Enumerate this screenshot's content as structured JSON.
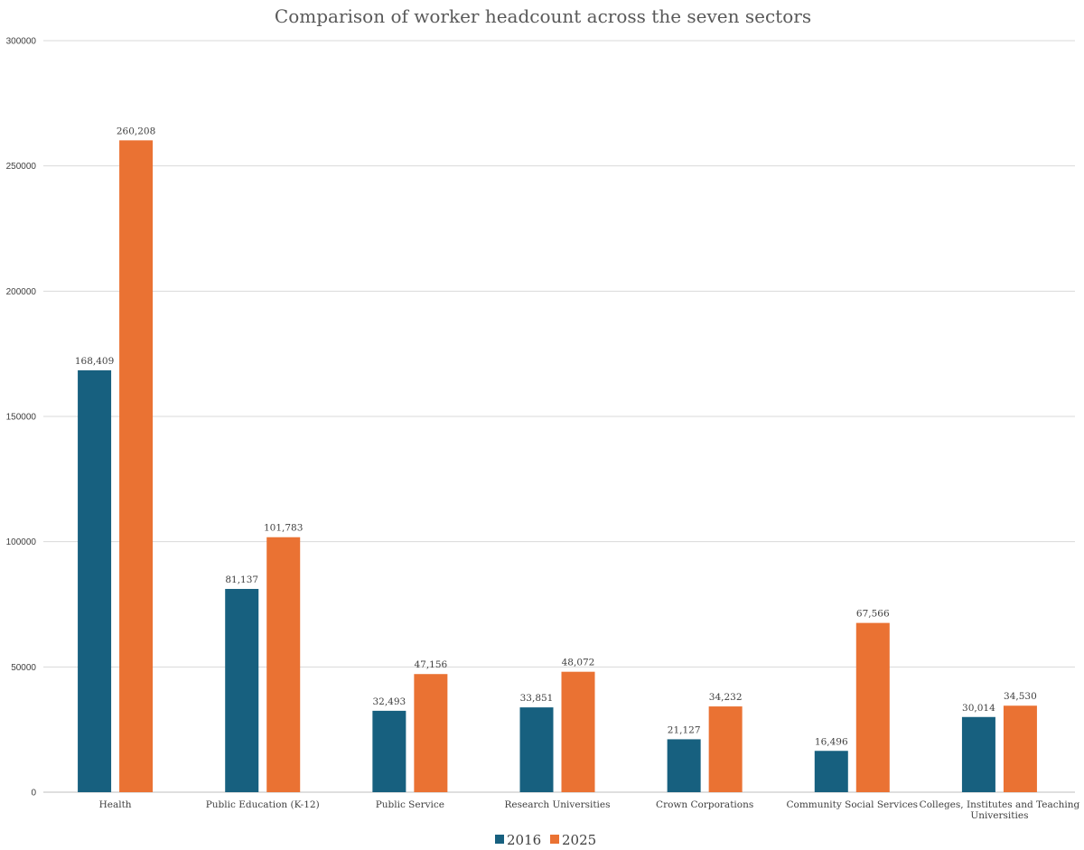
{
  "chart_data": {
    "type": "bar",
    "title": "Comparison of worker headcount across the seven sectors",
    "xlabel": "",
    "ylabel": "",
    "categories": [
      [
        "Health"
      ],
      [
        "Public Education (K-12)"
      ],
      [
        "Public Service"
      ],
      [
        "Research Universities"
      ],
      [
        "Crown Corporations"
      ],
      [
        "Community Social Services"
      ],
      [
        "Colleges, Institutes and Teaching",
        "Universities"
      ]
    ],
    "series": [
      {
        "name": "2016",
        "color": "#17607f",
        "values": [
          168409,
          81137,
          32493,
          33851,
          21127,
          16496,
          30014
        ],
        "labels": [
          "168,409",
          "81,137",
          "32,493",
          "33,851",
          "21,127",
          "16,496",
          "30,014"
        ]
      },
      {
        "name": "2025",
        "color": "#ea7233",
        "values": [
          260208,
          101783,
          47156,
          48072,
          34232,
          67566,
          34530
        ],
        "labels": [
          "260,208",
          "101,783",
          "47,156",
          "48,072",
          "34,232",
          "67,566",
          "34,530"
        ]
      }
    ],
    "ylim": [
      0,
      300000
    ],
    "yticks": [
      0,
      50000,
      100000,
      150000,
      200000,
      250000,
      300000
    ],
    "ytick_labels": [
      "0",
      "50000",
      "100000",
      "150000",
      "200000",
      "250000",
      "300000"
    ],
    "grid": true,
    "legend_position": "bottom-center",
    "gridline_color": "#d9d9d9",
    "axis_line_color": "#bfbfbf"
  }
}
